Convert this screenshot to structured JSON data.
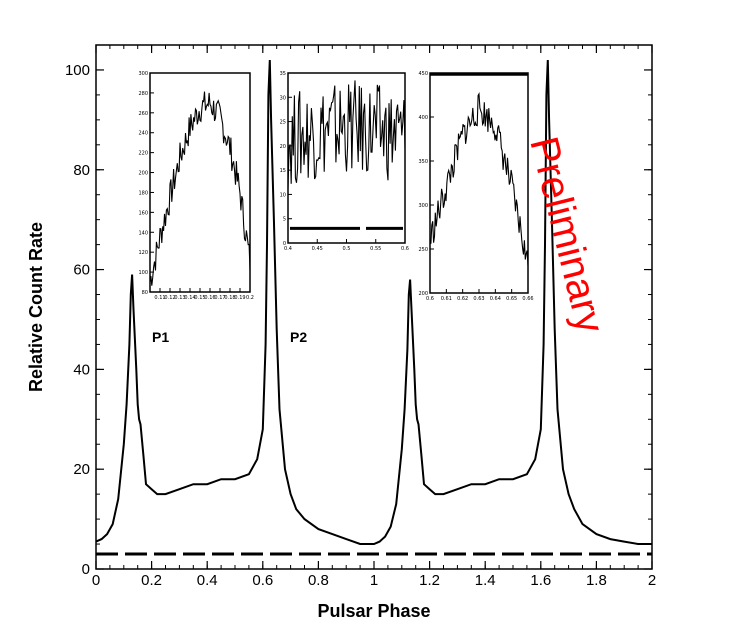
{
  "chart_data": {
    "type": "line",
    "title": "",
    "xlabel": "Pulsar Phase",
    "ylabel": "Relative Count Rate",
    "xlim": [
      0,
      2
    ],
    "ylim": [
      0,
      105
    ],
    "x_ticks": [
      "0",
      "0.2",
      "0.4",
      "0.6",
      "0.8",
      "1",
      "1.2",
      "1.4",
      "1.6",
      "1.8",
      "2"
    ],
    "y_ticks": [
      "0",
      "20",
      "40",
      "60",
      "80",
      "100"
    ],
    "grid": false,
    "annotations": {
      "p1": "P1",
      "p2": "P2",
      "watermark": "Preliminary"
    },
    "watermark_color": "#ff0000",
    "series": [
      {
        "style": "solid",
        "color": "#000000",
        "x": [
          0.0,
          0.02,
          0.04,
          0.06,
          0.08,
          0.1,
          0.11,
          0.12,
          0.125,
          0.13,
          0.135,
          0.14,
          0.145,
          0.15,
          0.155,
          0.16,
          0.17,
          0.18,
          0.2,
          0.22,
          0.25,
          0.3,
          0.35,
          0.4,
          0.45,
          0.5,
          0.55,
          0.58,
          0.6,
          0.61,
          0.615,
          0.62,
          0.625,
          0.63,
          0.64,
          0.65,
          0.66,
          0.68,
          0.7,
          0.72,
          0.75,
          0.8,
          0.85,
          0.9,
          0.95,
          1.0,
          1.02,
          1.04,
          1.06,
          1.08,
          1.1,
          1.11,
          1.12,
          1.125,
          1.13,
          1.135,
          1.14,
          1.145,
          1.15,
          1.155,
          1.16,
          1.17,
          1.18,
          1.2,
          1.22,
          1.25,
          1.3,
          1.35,
          1.4,
          1.45,
          1.5,
          1.55,
          1.58,
          1.6,
          1.61,
          1.615,
          1.62,
          1.625,
          1.63,
          1.64,
          1.65,
          1.66,
          1.68,
          1.7,
          1.72,
          1.75,
          1.8,
          1.85,
          1.9,
          1.95,
          2.0
        ],
        "y": [
          5.5,
          6,
          7,
          9,
          14,
          25,
          33,
          45,
          55,
          59,
          52,
          46,
          40,
          33,
          30,
          29,
          23,
          17,
          16,
          15,
          15,
          16,
          17,
          17,
          18,
          18,
          19,
          22,
          28,
          45,
          65,
          95,
          102,
          90,
          70,
          48,
          32,
          20,
          15,
          12,
          10,
          8,
          7,
          6,
          5,
          5,
          5.5,
          6.5,
          8.5,
          13,
          24,
          32,
          44,
          55,
          58,
          52,
          46,
          40,
          33,
          30,
          29,
          23,
          17,
          16,
          15,
          15,
          16,
          17,
          17,
          18,
          18,
          19,
          22,
          28,
          45,
          65,
          95,
          102,
          90,
          70,
          48,
          32,
          20,
          15,
          12,
          9,
          7,
          6,
          5.5,
          5,
          5
        ]
      },
      {
        "style": "dashed",
        "color": "#000000",
        "x": [
          0,
          2
        ],
        "y": [
          3,
          3
        ]
      }
    ],
    "insets": [
      {
        "xlim": [
          0.1,
          0.2
        ],
        "ylim": [
          80,
          300
        ],
        "x_ticks": [
          "0.11",
          "0.12",
          "0.13",
          "0.14",
          "0.15",
          "0.16",
          "0.17",
          "0.18",
          "0.19",
          "0.2"
        ],
        "y_ticks": [
          "80",
          "100",
          "120",
          "140",
          "160",
          "180",
          "200",
          "220",
          "240",
          "260",
          "280",
          "300"
        ],
        "x": [
          0.1,
          0.11,
          0.12,
          0.13,
          0.14,
          0.15,
          0.16,
          0.17,
          0.18,
          0.19,
          0.2
        ],
        "y": [
          90,
          135,
          175,
          215,
          245,
          265,
          270,
          255,
          225,
          180,
          110
        ]
      },
      {
        "xlim": [
          0.4,
          0.6
        ],
        "ylim": [
          0,
          35
        ],
        "x_ticks": [
          "0.4",
          "0.45",
          "0.5",
          "0.55",
          "0.6"
        ],
        "y_ticks": [
          "0",
          "5",
          "10",
          "15",
          "20",
          "25",
          "30",
          "35"
        ],
        "x": [
          0.4,
          0.45,
          0.5,
          0.55,
          0.6
        ],
        "y": [
          21,
          23,
          24,
          23,
          22
        ],
        "baseline": 3
      },
      {
        "xlim": [
          0.6,
          0.66
        ],
        "ylim": [
          200,
          450
        ],
        "x_ticks": [
          "0.6",
          "0.61",
          "0.62",
          "0.63",
          "0.64",
          "0.65",
          "0.66"
        ],
        "y_ticks": [
          "200",
          "250",
          "300",
          "350",
          "400",
          "450"
        ],
        "x": [
          0.6,
          0.61,
          0.62,
          0.63,
          0.64,
          0.65,
          0.66
        ],
        "y": [
          260,
          320,
          380,
          410,
          390,
          320,
          230
        ]
      }
    ]
  }
}
